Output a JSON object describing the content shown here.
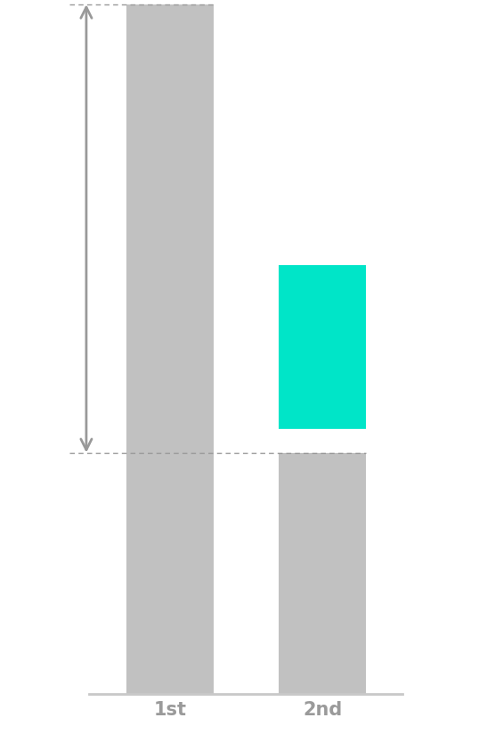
{
  "chart_data": {
    "type": "bar",
    "categories": [
      "1st",
      "2nd"
    ],
    "values": [
      100,
      35
    ],
    "color": "#c1c1c1",
    "ylim": [
      0,
      100
    ],
    "tick_labels": "x",
    "grid": false
  }
}
